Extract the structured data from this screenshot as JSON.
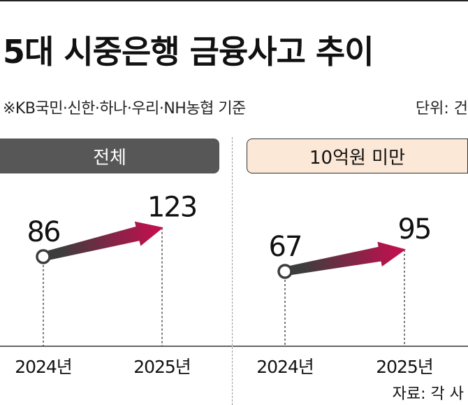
{
  "header": {
    "title": "5대 시중은행 금융사고 추이",
    "note": "※KB국민·신한·하나·우리·NH농협 기준",
    "unit": "단위: 건"
  },
  "panels": {
    "left_tab": "전체",
    "right_tab": "10억원 미만"
  },
  "source": "자료: 각 사",
  "colors": {
    "arrow_start": "#3d3d3d",
    "arrow_end": "#c0104e",
    "tab_dark": "#575757",
    "tab_light": "#fce8d6"
  },
  "chart_data": [
    {
      "type": "line",
      "title": "전체",
      "categories": [
        "2024년",
        "2025년"
      ],
      "values": [
        86,
        123
      ],
      "value_labels": [
        "86",
        "123"
      ]
    },
    {
      "type": "line",
      "title": "10억원 미만",
      "categories": [
        "2024년",
        "2025년"
      ],
      "values": [
        67,
        95
      ],
      "value_labels": [
        "67",
        "95"
      ]
    }
  ]
}
